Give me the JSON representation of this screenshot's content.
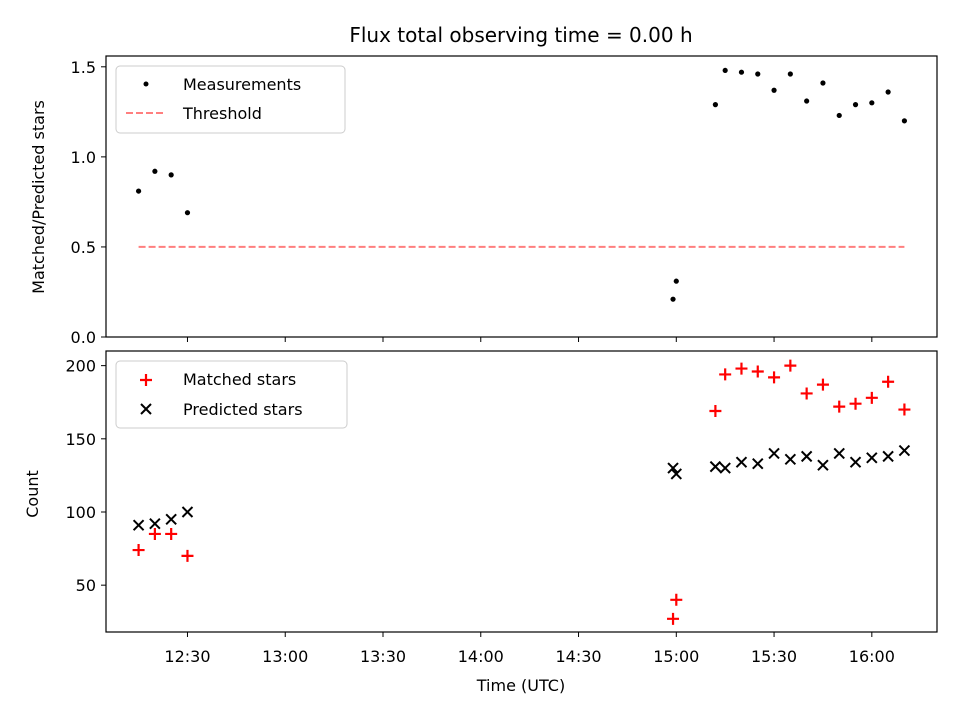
{
  "chart_data": [
    {
      "type": "scatter",
      "title": "Flux total observing time = 0.00 h",
      "ylabel": "Matched/Predicted stars",
      "xlabel": "",
      "ylim": [
        0,
        1.56
      ],
      "yticks": [
        "0.0",
        "0.5",
        "1.0",
        "1.5"
      ],
      "ytick_values": [
        0,
        0.5,
        1.0,
        1.5
      ],
      "legend_position": "top-left",
      "series": [
        {
          "name": "Measurements",
          "marker": "dot",
          "color": "#000000",
          "x": [
            "12:15",
            "12:20",
            "12:25",
            "12:30",
            "14:59",
            "15:00",
            "15:12",
            "15:15",
            "15:20",
            "15:25",
            "15:30",
            "15:35",
            "15:40",
            "15:45",
            "15:50",
            "15:55",
            "16:00",
            "16:05",
            "16:10"
          ],
          "values": [
            0.81,
            0.92,
            0.9,
            0.69,
            0.21,
            0.31,
            1.29,
            1.48,
            1.47,
            1.46,
            1.37,
            1.46,
            1.31,
            1.41,
            1.23,
            1.29,
            1.3,
            1.36,
            1.2
          ]
        },
        {
          "name": "Threshold",
          "marker": "dashed-line",
          "color": "#ff7f7f",
          "x": [
            "12:15",
            "16:10"
          ],
          "values": [
            0.5,
            0.5
          ]
        }
      ]
    },
    {
      "type": "scatter",
      "title": "",
      "ylabel": "Count",
      "xlabel": "Time (UTC)",
      "ylim": [
        18,
        210
      ],
      "yticks": [
        "50",
        "100",
        "150",
        "200"
      ],
      "ytick_values": [
        50,
        100,
        150,
        200
      ],
      "legend_position": "top-left",
      "series": [
        {
          "name": "Matched stars",
          "marker": "plus",
          "color": "#ff0000",
          "x": [
            "12:15",
            "12:20",
            "12:25",
            "12:30",
            "14:59",
            "15:00",
            "15:12",
            "15:15",
            "15:20",
            "15:25",
            "15:30",
            "15:35",
            "15:40",
            "15:45",
            "15:50",
            "15:55",
            "16:00",
            "16:05",
            "16:10"
          ],
          "values": [
            74,
            85,
            85,
            70,
            27,
            40,
            169,
            194,
            198,
            196,
            192,
            200,
            181,
            187,
            172,
            174,
            178,
            189,
            170
          ]
        },
        {
          "name": "Predicted stars",
          "marker": "x",
          "color": "#000000",
          "x": [
            "12:15",
            "12:20",
            "12:25",
            "12:30",
            "14:59",
            "15:00",
            "15:12",
            "15:15",
            "15:20",
            "15:25",
            "15:30",
            "15:35",
            "15:40",
            "15:45",
            "15:50",
            "15:55",
            "16:00",
            "16:05",
            "16:10"
          ],
          "values": [
            91,
            92,
            95,
            100,
            130,
            126,
            131,
            130,
            134,
            133,
            140,
            136,
            138,
            132,
            140,
            134,
            137,
            138,
            142
          ]
        }
      ]
    }
  ],
  "x_axis": {
    "range": [
      "12:05",
      "16:20"
    ],
    "ticks": [
      "12:30",
      "13:00",
      "13:30",
      "14:00",
      "14:30",
      "15:00",
      "15:30",
      "16:00"
    ]
  }
}
